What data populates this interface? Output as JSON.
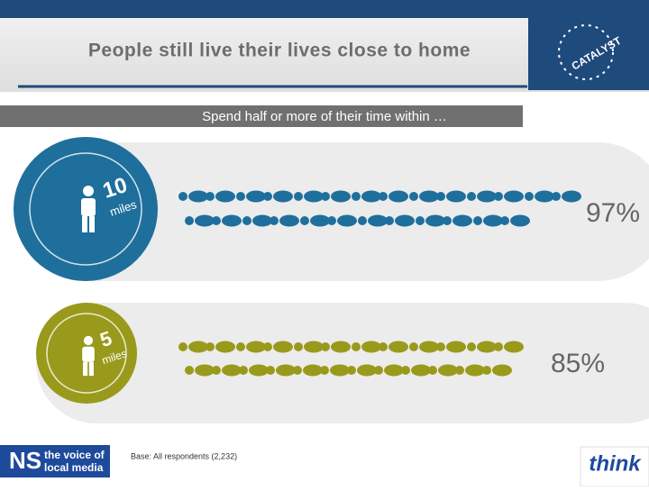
{
  "header": {
    "title": "People still live their lives close to home",
    "logo": "CATALYST"
  },
  "banner": "Spend half or more of their time within …",
  "rows": [
    {
      "distance": "10",
      "unit": "miles",
      "share": "97%"
    },
    {
      "distance": "5",
      "unit": "miles",
      "share": "85%"
    }
  ],
  "footer": {
    "base": "Base: All respondents (2,232)",
    "brand_left_mark": "NS",
    "brand_left_line1": "the voice of",
    "brand_left_line2": "local media",
    "brand_right": "think"
  }
}
